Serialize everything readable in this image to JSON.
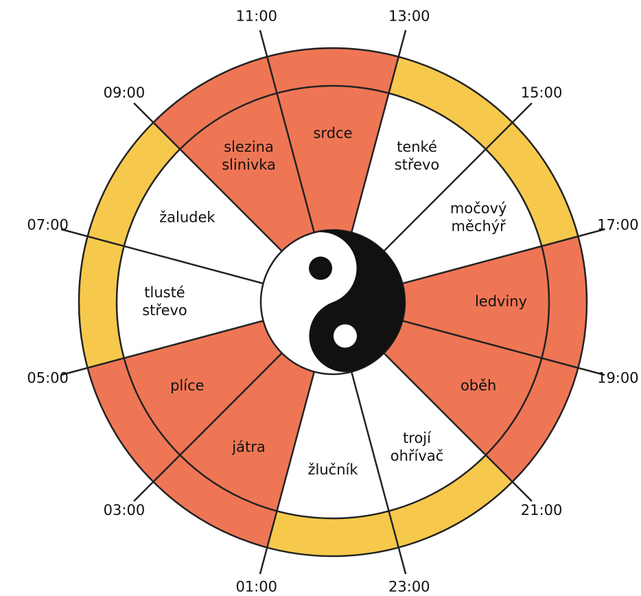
{
  "hours": [
    "11:00",
    "13:00",
    "15:00",
    "17:00",
    "19:00",
    "21:00",
    "23:00",
    "01:00",
    "03:00",
    "05:00",
    "07:00",
    "09:00"
  ],
  "ring_color": "#f6c94c",
  "segments": [
    {
      "label": [
        "srdce"
      ],
      "color": "#ef7655"
    },
    {
      "label": [
        "tenké",
        "střevo"
      ],
      "color": "#ffffff"
    },
    {
      "label": [
        "močový",
        "měchýř"
      ],
      "color": "#ffffff"
    },
    {
      "label": [
        "ledviny"
      ],
      "color": "#ef7655"
    },
    {
      "label": [
        "oběh"
      ],
      "color": "#ef7655"
    },
    {
      "label": [
        "trojí",
        "ohřívač"
      ],
      "color": "#ffffff"
    },
    {
      "label": [
        "žlučník"
      ],
      "color": "#ffffff"
    },
    {
      "label": [
        "játra"
      ],
      "color": "#ef7655"
    },
    {
      "label": [
        "plíce"
      ],
      "color": "#ef7655"
    },
    {
      "label": [
        "tlusté",
        "střevo"
      ],
      "color": "#ffffff"
    },
    {
      "label": [
        "žaludek"
      ],
      "color": "#ffffff"
    },
    {
      "label": [
        "slezina",
        "slinivka"
      ],
      "color": "#ef7655"
    }
  ]
}
